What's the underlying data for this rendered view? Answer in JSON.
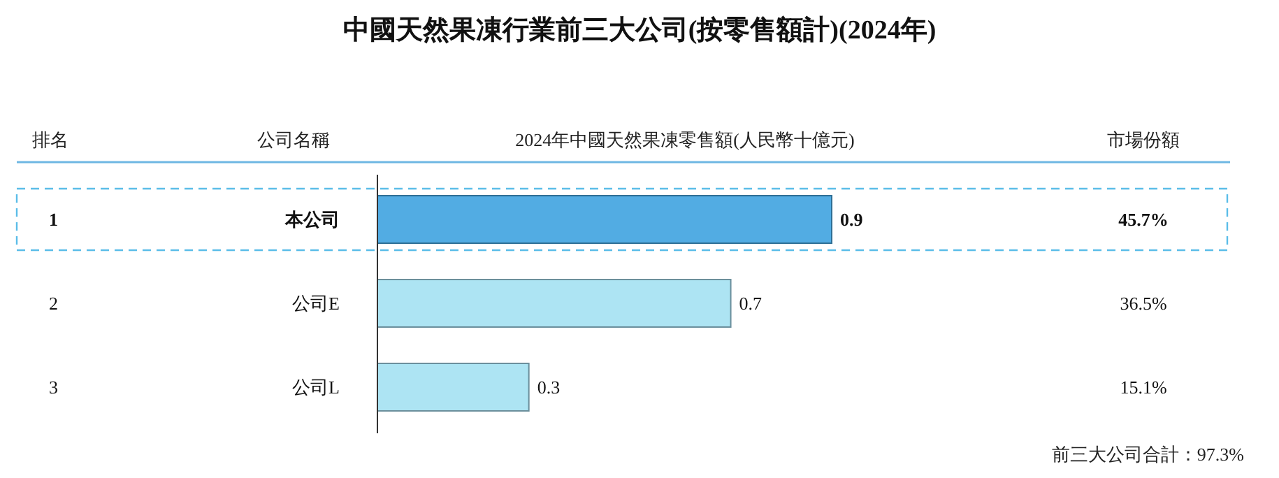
{
  "chart_data": {
    "type": "bar",
    "orientation": "horizontal",
    "title": "中國天然果凍行業前三大公司(按零售額計)(2024年)",
    "xlabel": "2024年中國天然果凍零售額(人民幣十億元)",
    "categories": [
      "本公司",
      "公司E",
      "公司L"
    ],
    "values": [
      0.9,
      0.7,
      0.3
    ],
    "colors": [
      "#52ace3",
      "#ade4f3",
      "#ade4f3"
    ],
    "data_labels": true,
    "annotations": [
      "排名",
      "公司名稱",
      "市場份額",
      "1",
      "2",
      "3",
      "45.7%",
      "36.5%",
      "15.1%",
      "前三大公司合計：97.3%"
    ]
  }
}
